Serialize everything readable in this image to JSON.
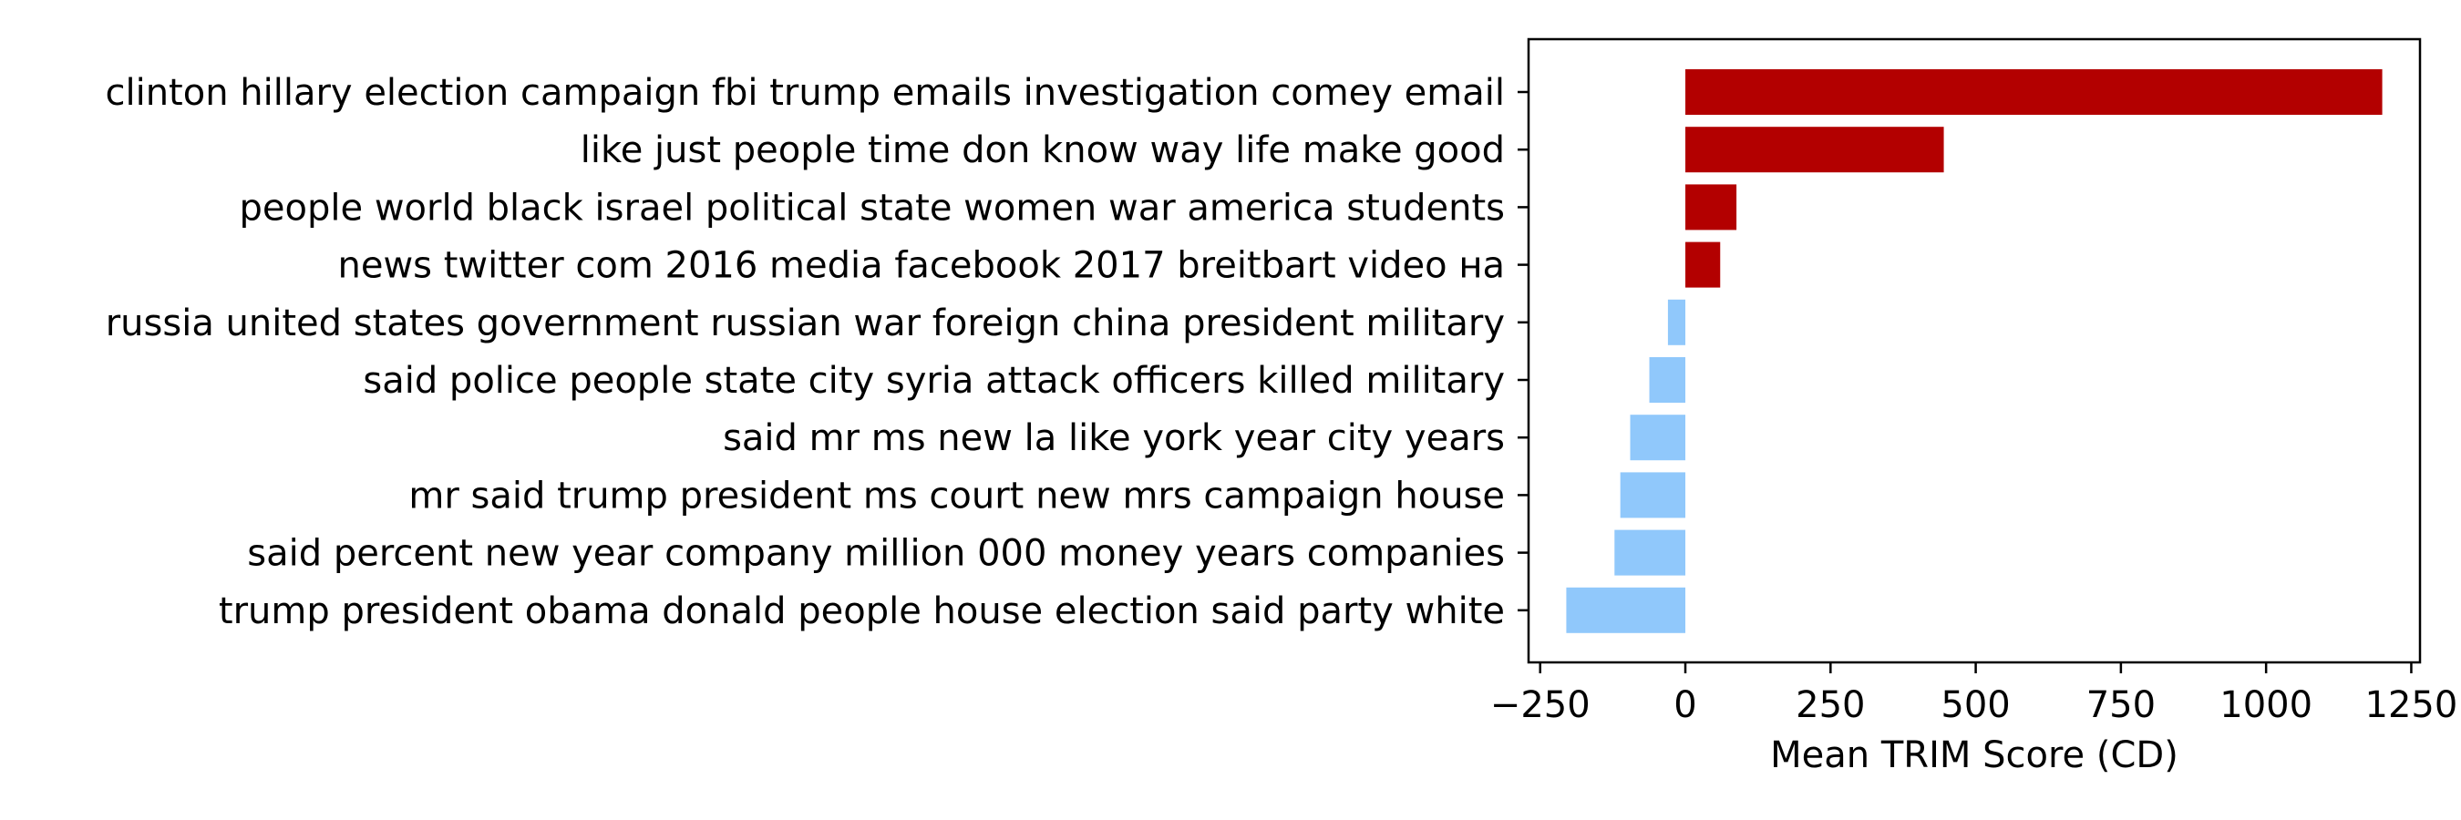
{
  "chart_data": {
    "type": "bar",
    "orientation": "horizontal",
    "title": "",
    "xlabel": "Mean TRIM Score (CD)",
    "ylabel": "",
    "xlim": [
      -270,
      1265
    ],
    "xticks": [
      -250,
      0,
      250,
      500,
      750,
      1000,
      1250
    ],
    "xtick_labels": [
      "−250",
      "0",
      "250",
      "500",
      "750",
      "1000",
      "1250"
    ],
    "grid": false,
    "categories": [
      "clinton hillary election campaign fbi trump emails investigation comey email",
      "like just people time don know way life make good",
      "people world black israel political state women war america students",
      "news twitter com 2016 media facebook 2017 breitbart video на",
      "russia united states government russian war foreign china president military",
      "said police people state city syria attack officers killed military",
      "said mr ms new la like york year city years",
      "mr said trump president ms court new mrs campaign house",
      "said percent new year company million 000 money years companies",
      "trump president obama donald people house election said party white"
    ],
    "values": [
      1200,
      445,
      88,
      60,
      -30,
      -62,
      -95,
      -112,
      -122,
      -205
    ],
    "colors": {
      "positive": "#b30000",
      "negative": "#90c8fb"
    }
  }
}
